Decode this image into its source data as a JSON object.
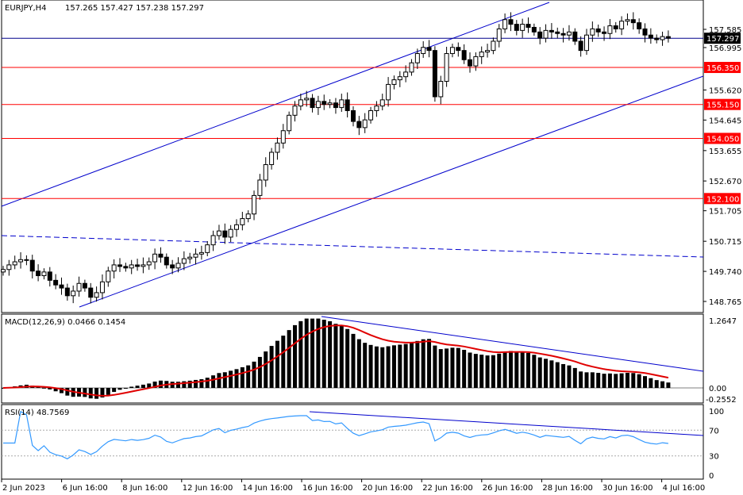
{
  "header": {
    "symbol_tf": "EURJPY,H4",
    "ohlc": "157.265 157.427 157.238 157.297"
  },
  "colors": {
    "support_resistance": "#ff0000",
    "channel": "#0000cc",
    "macd_signal": "#e00000",
    "rsi_line": "#3399ff",
    "current_price_line": "#00008b"
  },
  "price_axis": {
    "min": 148.3,
    "max": 158.6,
    "ticks": [
      "157.585",
      "156.995",
      "155.620",
      "154.645",
      "153.655",
      "152.670",
      "151.705",
      "150.715",
      "149.740",
      "148.765"
    ],
    "current_price": "157.297",
    "levels": [
      "156.350",
      "155.150",
      "154.050",
      "152.100"
    ]
  },
  "macd": {
    "label": "MACD(12,26,9) 0.0466 0.1454",
    "ticks": [
      "1.2647",
      "0.00",
      "-0.2552"
    ]
  },
  "rsi": {
    "label": "RSI(14) 48.7569",
    "ticks": [
      "100",
      "70",
      "30",
      "0"
    ]
  },
  "time_axis": {
    "labels": [
      "2 Jun 2023",
      "6 Jun 16:00",
      "8 Jun 16:00",
      "12 Jun 16:00",
      "14 Jun 16:00",
      "16 Jun 16:00",
      "20 Jun 16:00",
      "22 Jun 16:00",
      "26 Jun 16:00",
      "28 Jun 16:00",
      "30 Jun 16:00",
      "4 Jul 16:00"
    ]
  },
  "chart_data": {
    "type": "candlestick",
    "symbol": "EURJPY",
    "timeframe": "H4",
    "closes": [
      149.8,
      149.95,
      150.05,
      150.12,
      150.1,
      149.75,
      149.6,
      149.72,
      149.45,
      149.3,
      149.2,
      148.95,
      149.1,
      149.35,
      149.2,
      148.9,
      149.05,
      149.4,
      149.75,
      149.95,
      149.9,
      149.85,
      149.95,
      149.9,
      149.95,
      150.05,
      150.3,
      150.2,
      149.95,
      149.85,
      150.0,
      150.15,
      150.2,
      150.3,
      150.35,
      150.6,
      150.9,
      151.05,
      150.85,
      151.1,
      151.25,
      151.45,
      151.6,
      152.2,
      152.7,
      153.2,
      153.6,
      153.9,
      154.3,
      154.8,
      155.1,
      155.3,
      155.35,
      155.05,
      155.25,
      155.15,
      155.2,
      155.05,
      155.3,
      154.95,
      154.6,
      154.4,
      154.65,
      154.95,
      155.1,
      155.3,
      155.8,
      155.95,
      156.05,
      156.2,
      156.5,
      156.8,
      157.0,
      156.9,
      155.4,
      155.9,
      156.8,
      157.0,
      156.9,
      156.6,
      156.4,
      156.7,
      156.85,
      156.9,
      157.2,
      157.6,
      157.9,
      157.75,
      157.55,
      157.75,
      157.65,
      157.5,
      157.3,
      157.55,
      157.5,
      157.45,
      157.4,
      157.5,
      157.2,
      156.9,
      157.4,
      157.6,
      157.5,
      157.45,
      157.7,
      157.6,
      157.85,
      157.9,
      157.8,
      157.6,
      157.4,
      157.3,
      157.25,
      157.35,
      157.297
    ],
    "levels": [
      156.35,
      155.15,
      154.05,
      152.1
    ],
    "current_price": 157.297,
    "macd_last": 0.0466,
    "macd_signal_last": 0.1454,
    "macd_range": [
      -0.2552,
      1.2647
    ],
    "rsi_last": 48.7569,
    "rsi_levels": [
      70,
      30
    ],
    "rsi_range": [
      0,
      100
    ]
  }
}
